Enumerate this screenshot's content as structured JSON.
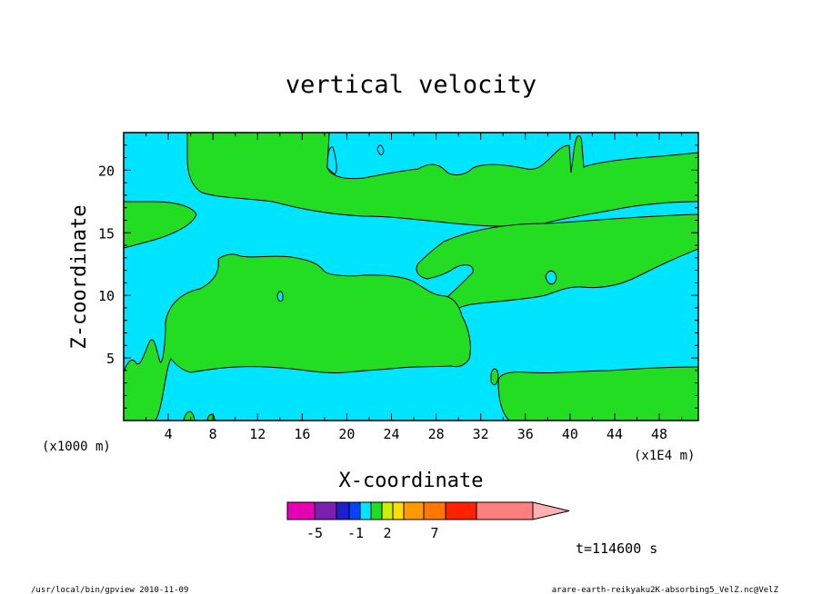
{
  "chart_data": {
    "type": "heatmap",
    "title": "vertical velocity",
    "xlabel": "X-coordinate",
    "ylabel": "Z-coordinate",
    "x_unit_left": "(x1000 m)",
    "x_unit_right": "(x1E4 m)",
    "x_ticks": [
      "4",
      "8",
      "12",
      "16",
      "20",
      "24",
      "28",
      "32",
      "36",
      "40",
      "44",
      "48"
    ],
    "y_ticks": [
      "5",
      "10",
      "15",
      "20"
    ],
    "xlim": [
      0,
      51.5
    ],
    "ylim": [
      0,
      23
    ],
    "fill_colors": {
      "negative": "#00e5ff",
      "positive": "#22dd22"
    },
    "colorbar": {
      "colors": [
        "#e600b4",
        "#7a1fb0",
        "#1e1ecc",
        "#0044ff",
        "#00e5ff",
        "#22dd22",
        "#ccee00",
        "#ffdd00",
        "#ff9900",
        "#ff7700",
        "#ff2200",
        "#ff7f7f",
        "#ffb0b0"
      ],
      "labels": [
        "-5",
        "-1",
        "2",
        "7"
      ]
    },
    "time_label": "t=114600 s"
  },
  "footer": {
    "left": "/usr/local/bin/gpview  2010-11-09",
    "right": "arare-earth-reikyaku2K-absorbing5_VelZ.nc@VelZ"
  }
}
